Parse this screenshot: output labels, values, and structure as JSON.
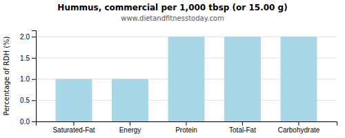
{
  "chart_data": {
    "type": "bar",
    "title": "Hummus, commercial per 1,000 tbsp (or 15.00 g)",
    "subtitle": "www.dietandfitnesstoday.com",
    "categories": [
      "Saturated-Fat",
      "Energy",
      "Protein",
      "Total-Fat",
      "Carbohydrate"
    ],
    "values": [
      1.0,
      1.0,
      2.0,
      2.0,
      2.0
    ],
    "color": "#a8d8e8",
    "ylabel": "Percentage of RDH (%)",
    "ylim": [
      0,
      2.15
    ],
    "yticks": [
      {
        "value": 0.0,
        "label": "0.0"
      },
      0.5,
      {
        "value": 1.0,
        "label": "1.0"
      },
      1.5,
      {
        "value": 2.0,
        "label": "2.0"
      }
    ],
    "grid": true
  }
}
